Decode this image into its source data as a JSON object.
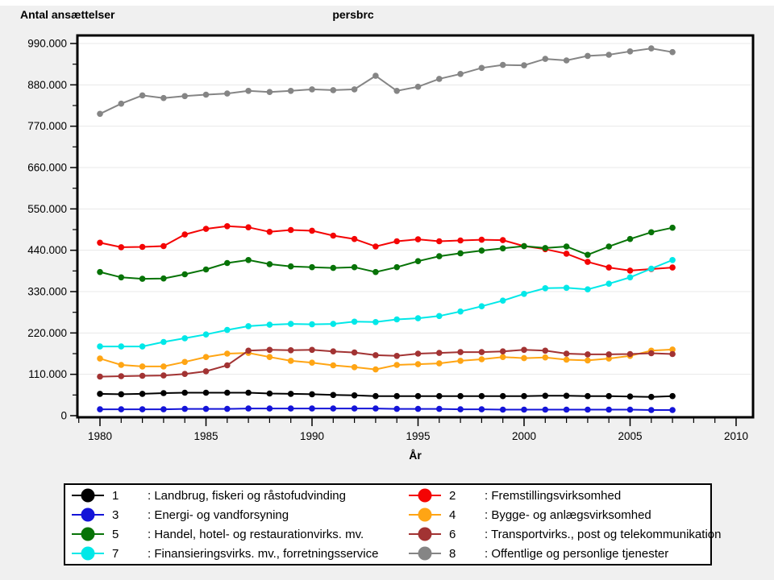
{
  "titles": {
    "left": "Antal ansættelser",
    "center": "persbrc"
  },
  "chart_data": {
    "type": "line",
    "x_years": [
      1980,
      1981,
      1982,
      1983,
      1984,
      1985,
      1986,
      1987,
      1988,
      1989,
      1990,
      1991,
      1992,
      1993,
      1994,
      1995,
      1996,
      1997,
      1998,
      1999,
      2000,
      2001,
      2002,
      2003,
      2004,
      2005,
      2006,
      2007
    ],
    "x_axis": {
      "label": "År",
      "major_ticks": [
        {
          "year": 1980,
          "label": "1980"
        },
        {
          "year": 1985,
          "label": "1985"
        },
        {
          "year": 1990,
          "label": "1990"
        },
        {
          "year": 1995,
          "label": "1995"
        },
        {
          "year": 2000,
          "label": "2000"
        },
        {
          "year": 2005,
          "label": "2005"
        },
        {
          "year": 2010,
          "label": "2010"
        }
      ],
      "minor_tick_range": [
        1979,
        2010
      ]
    },
    "y_axis": {
      "range": [
        0,
        990000
      ],
      "major_ticks": [
        {
          "value": 990000,
          "label": "990.000"
        },
        {
          "value": 880000,
          "label": "880.000"
        },
        {
          "value": 770000,
          "label": "770.000"
        },
        {
          "value": 660000,
          "label": "660.000"
        },
        {
          "value": 550000,
          "label": "550.000"
        },
        {
          "value": 440000,
          "label": "440.000"
        },
        {
          "value": 330000,
          "label": "330.000"
        },
        {
          "value": 220000,
          "label": "220.000"
        },
        {
          "value": 110000,
          "label": "110.000"
        },
        {
          "value": 0,
          "label": "0"
        }
      ],
      "minor_tick_values": [
        55000,
        165000,
        275000,
        385000,
        495000,
        605000,
        715000,
        825000,
        935000
      ]
    },
    "grid": "horizontal-major-only",
    "legend_position": "bottom",
    "series": [
      {
        "number": "1",
        "name": "Landbrug, fiskeri og råstofudvinding",
        "legend_text": ": Landbrug, fiskeri og råstofudvinding",
        "color": "#000000",
        "values": [
          58000,
          57000,
          58000,
          60000,
          61000,
          61000,
          61000,
          61000,
          59000,
          58000,
          57000,
          55000,
          54000,
          52000,
          52000,
          52000,
          52000,
          52000,
          52000,
          52000,
          52000,
          53000,
          53000,
          52000,
          52000,
          51000,
          50000,
          52000
        ]
      },
      {
        "number": "2",
        "name": "Fremstillingsvirksomhed",
        "legend_text": ": Fremstillingsvirksomhed",
        "color": "#f40404",
        "values": [
          460000,
          448000,
          449000,
          451000,
          482000,
          497000,
          504000,
          501000,
          489000,
          494000,
          492000,
          479000,
          470000,
          450000,
          464000,
          469000,
          464000,
          466000,
          468000,
          467000,
          451000,
          443000,
          431000,
          409000,
          394000,
          386000,
          390000,
          394000
        ]
      },
      {
        "number": "3",
        "name": "Energi- og vandforsyning",
        "legend_text": ": Energi- og vandforsyning",
        "color": "#1414d8",
        "values": [
          17000,
          17000,
          17000,
          17000,
          18000,
          18000,
          18000,
          19000,
          19000,
          19000,
          19000,
          19000,
          19000,
          19000,
          18000,
          18000,
          18000,
          17000,
          17000,
          16000,
          16000,
          16000,
          16000,
          16000,
          16000,
          16000,
          15000,
          15000
        ]
      },
      {
        "number": "4",
        "name": "Bygge- og anlægsvirksomhed",
        "legend_text": ": Bygge- og anlægsvirksomhed",
        "color": "#ffa514",
        "values": [
          152000,
          135000,
          131000,
          131000,
          143000,
          156000,
          165000,
          167000,
          156000,
          146000,
          141000,
          134000,
          129000,
          123000,
          135000,
          137000,
          139000,
          146000,
          150000,
          156000,
          153000,
          155000,
          149000,
          147000,
          152000,
          159000,
          173000,
          176000
        ]
      },
      {
        "number": "5",
        "name": "Handel, hotel- og restaurationvirks. mv.",
        "legend_text": ": Handel, hotel- og restaurationvirks. mv.",
        "color": "#077307",
        "values": [
          382000,
          368000,
          364000,
          365000,
          376000,
          389000,
          406000,
          414000,
          403000,
          397000,
          395000,
          393000,
          395000,
          382000,
          395000,
          411000,
          424000,
          432000,
          439000,
          445000,
          451000,
          446000,
          450000,
          428000,
          450000,
          470000,
          488000,
          500000
        ]
      },
      {
        "number": "6",
        "name": "Transportvirks., post og telekommunikation",
        "legend_text": ": Transportvirks., post og telekommunikation",
        "color": "#a23333",
        "values": [
          104000,
          105000,
          106000,
          107000,
          111000,
          118000,
          134000,
          173000,
          175000,
          174000,
          175000,
          171000,
          168000,
          161000,
          159000,
          165000,
          167000,
          169000,
          169000,
          171000,
          175000,
          173000,
          165000,
          163000,
          163000,
          164000,
          166000,
          164000
        ]
      },
      {
        "number": "7",
        "name": "Finansieringsvirks. mv., forretningsservice",
        "legend_text": ": Finansieringsvirks. mv., forretningsservice",
        "color": "#00e8e8",
        "values": [
          184000,
          184000,
          184000,
          196000,
          206000,
          216000,
          228000,
          238000,
          242000,
          244000,
          243000,
          244000,
          250000,
          249000,
          256000,
          259000,
          265000,
          277000,
          291000,
          306000,
          324000,
          339000,
          340000,
          336000,
          351000,
          368000,
          391000,
          414000
        ]
      },
      {
        "number": "8",
        "name": "Offentlige og personlige tjenester",
        "legend_text": ": Offentlige og personlige tjenester",
        "color": "#858585",
        "values": [
          803000,
          830000,
          852000,
          845000,
          850000,
          854000,
          857000,
          864000,
          861000,
          864000,
          868000,
          866000,
          868000,
          904000,
          864000,
          875000,
          896000,
          909000,
          925000,
          933000,
          932000,
          949000,
          945000,
          957000,
          960000,
          969000,
          977000,
          967000
        ]
      }
    ],
    "colors": {
      "background": "#f0f0f0",
      "plot_background": "#ffffff",
      "frame": "#000000",
      "gridline": "#e8e8e8",
      "text": "#000000"
    }
  }
}
